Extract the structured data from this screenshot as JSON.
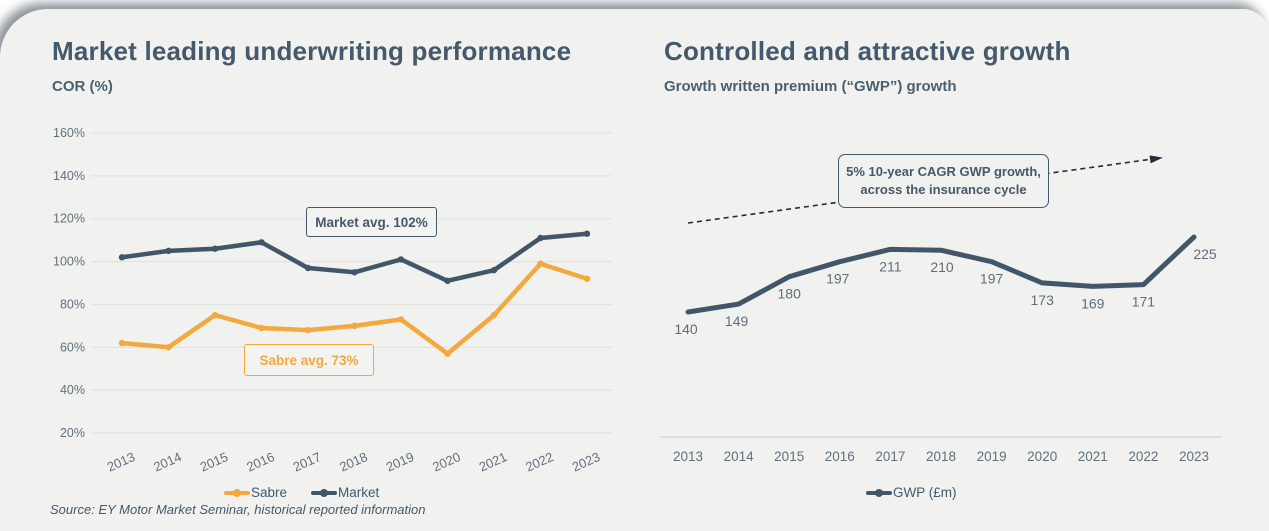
{
  "colors": {
    "card_bg": "#f1f1ef",
    "slate_line": "#42566a",
    "sabre_yellow": "#f2a93d",
    "title_text": "#44596b",
    "gridline": "#e3e3e0",
    "axis_line": "#d8d8d4",
    "tick_text": "#61707d",
    "arrow": "#222e38"
  },
  "left_panel": {
    "title": "Market leading underwriting performance",
    "subtitle": "COR (%)",
    "market_avg_label": "Market avg. 102%",
    "sabre_avg_label": "Sabre avg. 73%",
    "legend": [
      {
        "label": "Sabre",
        "color": "#f2a93d"
      },
      {
        "label": "Market",
        "color": "#42566a"
      }
    ]
  },
  "right_panel": {
    "title": "Controlled and attractive growth",
    "subtitle": "Growth written premium (“GWP”) growth",
    "annotation_line1": "5% 10-year CAGR GWP growth,",
    "annotation_line2": "across the insurance cycle",
    "legend": [
      {
        "label": "GWP (£m)",
        "color": "#42566a"
      }
    ]
  },
  "source_note": "Source: EY Motor Market Seminar, historical reported information",
  "chart_data": [
    {
      "type": "line",
      "title": "Market leading underwriting performance",
      "subtitle": "COR (%)",
      "categories": [
        "2013",
        "2014",
        "2015",
        "2016",
        "2017",
        "2018",
        "2019",
        "2020",
        "2021",
        "2022",
        "2023"
      ],
      "series": [
        {
          "name": "Sabre",
          "color": "#f2a93d",
          "values": [
            62,
            60,
            75,
            69,
            68,
            70,
            73,
            57,
            75,
            99,
            92
          ]
        },
        {
          "name": "Market",
          "color": "#42566a",
          "values": [
            102,
            105,
            106,
            109,
            97,
            95,
            101,
            91,
            96,
            111,
            113
          ]
        }
      ],
      "ylim": [
        20,
        160
      ],
      "yticks": [
        160,
        140,
        120,
        100,
        80,
        60,
        40,
        20
      ],
      "ytick_suffix": "%",
      "grid": true,
      "legend_position": "bottom",
      "annotations": [
        "Market avg. 102%",
        "Sabre avg. 73%"
      ]
    },
    {
      "type": "line",
      "title": "Controlled and attractive growth",
      "subtitle": "Growth written premium (“GWP”) growth",
      "categories": [
        "2013",
        "2014",
        "2015",
        "2016",
        "2017",
        "2018",
        "2019",
        "2020",
        "2021",
        "2022",
        "2023"
      ],
      "series": [
        {
          "name": "GWP (£m)",
          "color": "#42566a",
          "values": [
            140,
            149,
            180,
            197,
            211,
            210,
            197,
            173,
            169,
            171,
            225
          ]
        }
      ],
      "data_labels": true,
      "grid": false,
      "legend_position": "bottom",
      "annotation": "5% 10-year CAGR GWP growth, across the insurance cycle",
      "annotation_arrow": "dashed, rising left-to-right"
    }
  ]
}
